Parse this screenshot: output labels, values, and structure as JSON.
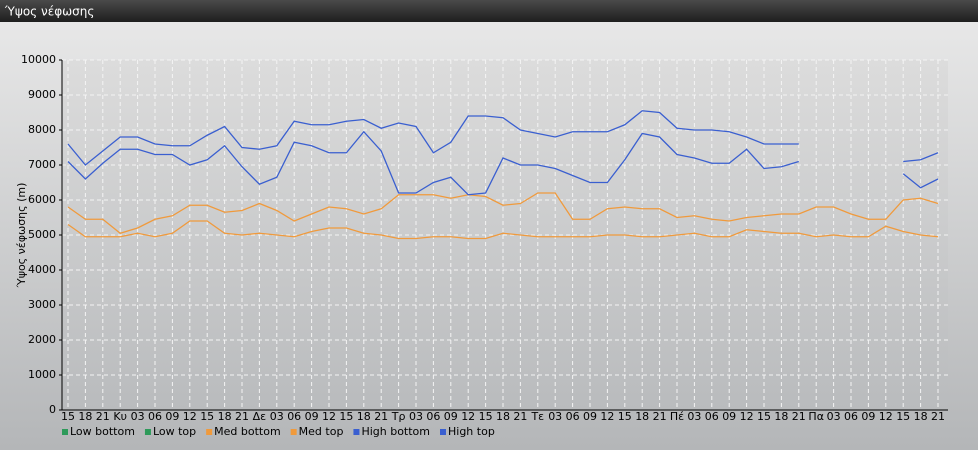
{
  "window_title": "Ύψος νέφωσης",
  "chart_data": {
    "type": "line",
    "y_label": "Ύψος νέφωσης (m)",
    "categories": [
      "15",
      "18",
      "21",
      "Κυ",
      "03",
      "06",
      "09",
      "12",
      "15",
      "18",
      "21",
      "Δε",
      "03",
      "06",
      "09",
      "12",
      "15",
      "18",
      "21",
      "Τρ",
      "03",
      "06",
      "09",
      "12",
      "15",
      "18",
      "21",
      "Τε",
      "03",
      "06",
      "09",
      "12",
      "15",
      "18",
      "21",
      "Πέ",
      "03",
      "06",
      "09",
      "12",
      "15",
      "18",
      "21",
      "Πα",
      "03",
      "06",
      "09",
      "12",
      "15",
      "18",
      "21"
    ],
    "ylim": [
      0,
      10000
    ],
    "yticks": [
      0,
      1000,
      2000,
      3000,
      4000,
      5000,
      6000,
      7000,
      8000,
      9000,
      10000
    ],
    "grid": true,
    "legend": "bottom-left",
    "series": [
      {
        "name": "Low bottom",
        "color": "#2e9a5a",
        "values": [
          null,
          null,
          null,
          null,
          null,
          null,
          null,
          null,
          null,
          null,
          null,
          null,
          null,
          null,
          null,
          null,
          null,
          null,
          null,
          null,
          null,
          null,
          null,
          null,
          null,
          null,
          null,
          null,
          null,
          null,
          null,
          null,
          null,
          null,
          null,
          null,
          null,
          null,
          null,
          null,
          null,
          null,
          null,
          null,
          null,
          null,
          null,
          null,
          null,
          null,
          null
        ]
      },
      {
        "name": "Low top",
        "color": "#2e9a5a",
        "values": [
          null,
          null,
          null,
          null,
          null,
          null,
          null,
          null,
          null,
          null,
          null,
          null,
          null,
          null,
          null,
          null,
          null,
          null,
          null,
          null,
          null,
          null,
          null,
          null,
          null,
          null,
          null,
          null,
          null,
          null,
          null,
          null,
          null,
          null,
          null,
          null,
          null,
          null,
          null,
          null,
          null,
          null,
          null,
          null,
          null,
          null,
          null,
          null,
          null,
          null,
          null
        ]
      },
      {
        "name": "Med bottom",
        "color": "#f09a3c",
        "values": [
          5300,
          4950,
          4950,
          4950,
          5050,
          4950,
          5050,
          5400,
          5400,
          5050,
          5000,
          5050,
          5000,
          4950,
          5100,
          5200,
          5200,
          5050,
          5000,
          4900,
          4900,
          4950,
          4950,
          4900,
          4900,
          5050,
          5000,
          4950,
          4950,
          4950,
          4950,
          5000,
          5000,
          4950,
          4950,
          5000,
          5050,
          4950,
          4950,
          5150,
          5100,
          5050,
          5050,
          4950,
          5000,
          4950,
          4950,
          5250,
          5100,
          5000,
          4950
        ]
      },
      {
        "name": "Med top",
        "color": "#f09a3c",
        "values": [
          5800,
          5450,
          5450,
          5050,
          5200,
          5450,
          5550,
          5850,
          5850,
          5650,
          5700,
          5900,
          5700,
          5400,
          5600,
          5800,
          5750,
          5600,
          5750,
          6150,
          6150,
          6150,
          6050,
          6150,
          6100,
          5850,
          5900,
          6200,
          6200,
          5450,
          5450,
          5750,
          5800,
          5750,
          5750,
          5500,
          5550,
          5450,
          5400,
          5500,
          5550,
          5600,
          5600,
          5800,
          5800,
          5600,
          5450,
          5450,
          6000,
          6050,
          5900
        ]
      },
      {
        "name": "High bottom",
        "color": "#3a5fd0",
        "values": [
          7100,
          6600,
          7050,
          7450,
          7450,
          7300,
          7300,
          7000,
          7150,
          7550,
          6950,
          6450,
          6650,
          7650,
          7550,
          7350,
          7350,
          7950,
          7400,
          6200,
          6200,
          6500,
          6650,
          6150,
          6200,
          7200,
          7000,
          7000,
          6900,
          6700,
          6500,
          6500,
          7150,
          7900,
          7800,
          7300,
          7200,
          7050,
          7050,
          7450,
          6900,
          6950,
          7100,
          null,
          null,
          null,
          null,
          null,
          6750,
          6350,
          6600
        ]
      },
      {
        "name": "High top",
        "color": "#3a5fd0",
        "values": [
          7600,
          7000,
          7400,
          7800,
          7800,
          7600,
          7550,
          7550,
          7850,
          8100,
          7500,
          7450,
          7550,
          8250,
          8150,
          8150,
          8250,
          8300,
          8050,
          8200,
          8100,
          7350,
          7650,
          8400,
          8400,
          8350,
          8000,
          7900,
          7800,
          7950,
          7950,
          7950,
          8150,
          8550,
          8500,
          8050,
          8000,
          8000,
          7950,
          7800,
          7600,
          7600,
          7600,
          null,
          null,
          null,
          null,
          null,
          7100,
          7150,
          7350
        ]
      }
    ]
  }
}
